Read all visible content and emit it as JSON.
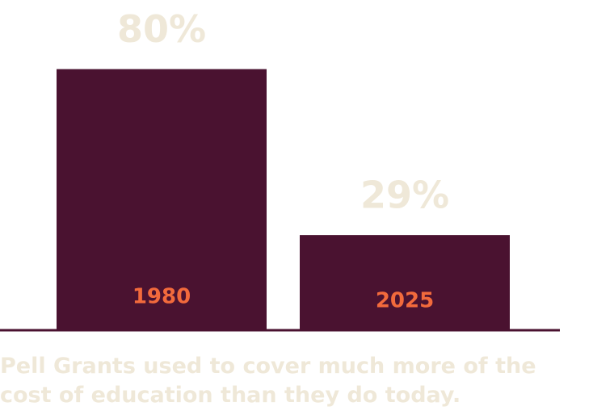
{
  "chart_data": {
    "type": "bar",
    "categories": [
      "1980",
      "2025"
    ],
    "values": [
      80,
      29
    ],
    "value_labels": [
      "80%",
      "29%"
    ],
    "color": "#4a1230",
    "caption": "Pell Grants used to cover much more of the cost of education than they do today."
  }
}
